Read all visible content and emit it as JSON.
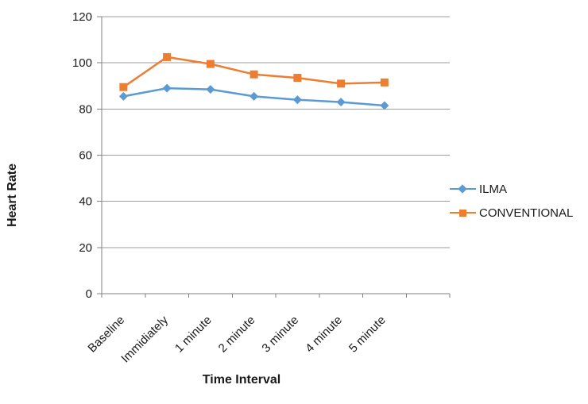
{
  "chart_data": {
    "type": "line",
    "title": "",
    "xlabel": "Time Interval",
    "ylabel": "Heart Rate",
    "categories": [
      "Baseline",
      "Immidiately",
      "1 minute",
      "2 minute",
      "3 minute",
      "4 minute",
      "5 minute"
    ],
    "series": [
      {
        "name": "ILMA",
        "color": "#5B9BD5",
        "marker": "diamond",
        "values": [
          85.5,
          89,
          88.5,
          85.5,
          84,
          83,
          81.5
        ]
      },
      {
        "name": "CONVENTIONAL",
        "color": "#ED7D31",
        "marker": "square",
        "values": [
          89.5,
          102.5,
          99.5,
          95,
          93.5,
          91,
          91.5
        ]
      }
    ],
    "ylim": [
      0,
      120
    ],
    "yticks": [
      0,
      20,
      40,
      60,
      80,
      100,
      120
    ],
    "grid": true,
    "legend_position": "right",
    "extra_category_slots": 1,
    "axis_color": "#808080",
    "gridline_color": "#9d9d9d",
    "text_color": "#1a1a1a"
  }
}
